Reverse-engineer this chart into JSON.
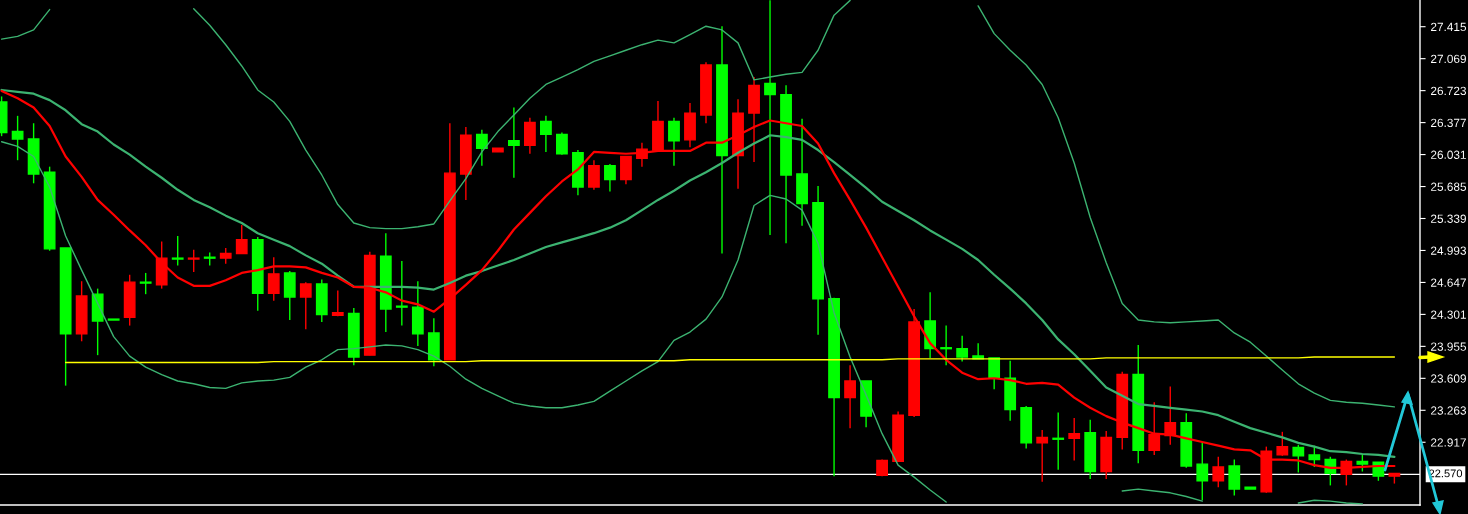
{
  "chart_data": {
    "type": "candlestick",
    "categories": [
      null,
      null,
      null,
      null,
      null,
      null,
      null,
      null,
      null,
      null,
      null,
      null,
      null,
      null,
      null,
      null,
      null,
      null,
      null,
      null,
      null,
      null,
      null,
      null,
      null,
      null,
      null,
      null,
      null,
      null,
      null,
      null,
      null,
      null,
      null,
      null,
      null,
      null,
      null,
      null,
      null,
      null,
      null,
      null,
      null,
      null,
      null,
      null,
      null,
      null,
      null,
      null,
      null,
      null,
      null,
      null,
      null,
      null,
      null,
      null,
      null,
      null,
      null,
      null,
      null,
      null,
      null,
      null,
      null,
      null,
      null,
      null,
      null,
      null,
      null,
      null,
      null,
      null,
      null,
      null,
      null,
      null,
      null,
      null,
      null,
      null,
      null,
      null
    ],
    "ohlc": [
      [
        26.6,
        26.66,
        26.23,
        26.27
      ],
      [
        26.28,
        26.45,
        25.97,
        26.2
      ],
      [
        26.2,
        26.37,
        25.72,
        25.82
      ],
      [
        25.84,
        25.9,
        24.99,
        25.01
      ],
      [
        25.02,
        25.02,
        23.53,
        24.09
      ],
      [
        24.09,
        24.66,
        24.01,
        24.5
      ],
      [
        24.52,
        24.58,
        23.86,
        24.23
      ],
      [
        24.25,
        24.25,
        24.24,
        24.24
      ],
      [
        24.27,
        24.73,
        24.18,
        24.65
      ],
      [
        24.65,
        24.75,
        24.52,
        24.64
      ],
      [
        24.62,
        25.09,
        24.58,
        24.91
      ],
      [
        24.91,
        25.15,
        24.83,
        24.9
      ],
      [
        24.9,
        25.0,
        24.76,
        24.91
      ],
      [
        24.92,
        24.97,
        24.83,
        24.91
      ],
      [
        24.91,
        25.02,
        24.85,
        24.96
      ],
      [
        24.96,
        25.27,
        24.96,
        25.11
      ],
      [
        25.11,
        25.14,
        24.34,
        24.53
      ],
      [
        24.53,
        24.92,
        24.45,
        24.74
      ],
      [
        24.75,
        24.77,
        24.24,
        24.49
      ],
      [
        24.49,
        24.65,
        24.14,
        24.63
      ],
      [
        24.63,
        24.68,
        24.22,
        24.3
      ],
      [
        24.29,
        24.56,
        24.28,
        24.32
      ],
      [
        24.31,
        24.37,
        23.75,
        23.84
      ],
      [
        23.86,
        24.98,
        23.86,
        24.94
      ],
      [
        24.93,
        25.18,
        24.11,
        24.36
      ],
      [
        24.39,
        24.88,
        24.18,
        24.38
      ],
      [
        24.38,
        24.66,
        23.96,
        24.09
      ],
      [
        24.1,
        24.26,
        23.74,
        23.81
      ],
      [
        23.81,
        26.37,
        23.81,
        25.83
      ],
      [
        25.82,
        26.33,
        25.54,
        26.24
      ],
      [
        26.25,
        26.3,
        25.91,
        26.1
      ],
      [
        26.06,
        26.1,
        26.06,
        26.1
      ],
      [
        26.18,
        26.54,
        25.78,
        26.13
      ],
      [
        26.13,
        26.43,
        26.04,
        26.38
      ],
      [
        26.39,
        26.45,
        26.06,
        26.25
      ],
      [
        26.25,
        26.27,
        26.03,
        26.04
      ],
      [
        26.05,
        26.08,
        25.59,
        25.68
      ],
      [
        25.68,
        25.97,
        25.65,
        25.91
      ],
      [
        25.91,
        25.93,
        25.63,
        25.76
      ],
      [
        25.76,
        26.01,
        25.71,
        26.01
      ],
      [
        25.99,
        26.16,
        25.9,
        26.09
      ],
      [
        26.08,
        26.61,
        26.08,
        26.39
      ],
      [
        26.39,
        26.43,
        25.91,
        26.18
      ],
      [
        26.19,
        26.59,
        26.11,
        26.48
      ],
      [
        26.46,
        27.03,
        26.37,
        27.0
      ],
      [
        27.0,
        27.42,
        24.96,
        26.02
      ],
      [
        26.02,
        26.63,
        25.66,
        26.48
      ],
      [
        26.48,
        26.87,
        25.95,
        26.78
      ],
      [
        26.8,
        27.7,
        25.16,
        26.68
      ],
      [
        26.68,
        26.78,
        25.07,
        25.81
      ],
      [
        25.82,
        26.42,
        25.26,
        25.5
      ],
      [
        25.51,
        25.69,
        24.08,
        24.47
      ],
      [
        24.47,
        24.48,
        22.55,
        23.4
      ],
      [
        23.4,
        23.75,
        23.07,
        23.58
      ],
      [
        23.58,
        23.58,
        23.08,
        23.2
      ],
      [
        22.56,
        22.73,
        22.55,
        22.72
      ],
      [
        22.71,
        23.25,
        22.71,
        23.21
      ],
      [
        23.21,
        24.36,
        23.19,
        24.22
      ],
      [
        24.23,
        24.54,
        23.83,
        23.93
      ],
      [
        23.94,
        24.18,
        23.75,
        23.93
      ],
      [
        23.93,
        24.07,
        23.79,
        23.84
      ],
      [
        23.85,
        23.99,
        23.82,
        23.82
      ],
      [
        23.83,
        23.83,
        23.49,
        23.62
      ],
      [
        23.61,
        23.8,
        23.15,
        23.27
      ],
      [
        23.29,
        23.31,
        22.85,
        22.91
      ],
      [
        22.91,
        23.05,
        22.49,
        22.97
      ],
      [
        22.96,
        23.24,
        22.62,
        22.95
      ],
      [
        22.96,
        23.18,
        22.72,
        23.01
      ],
      [
        23.02,
        23.16,
        22.52,
        22.6
      ],
      [
        22.6,
        23.04,
        22.52,
        22.97
      ],
      [
        22.97,
        23.68,
        22.84,
        23.65
      ],
      [
        23.65,
        23.97,
        22.69,
        22.83
      ],
      [
        22.83,
        23.35,
        22.78,
        23.0
      ],
      [
        22.99,
        23.52,
        22.89,
        23.13
      ],
      [
        23.13,
        23.23,
        22.64,
        22.66
      ],
      [
        22.68,
        22.92,
        22.29,
        22.5
      ],
      [
        22.5,
        22.76,
        22.43,
        22.65
      ],
      [
        22.66,
        22.73,
        22.34,
        22.41
      ],
      [
        22.43,
        22.43,
        22.41,
        22.41
      ],
      [
        22.38,
        22.87,
        22.37,
        22.82
      ],
      [
        22.78,
        23.03,
        22.77,
        22.87
      ],
      [
        22.86,
        22.89,
        22.59,
        22.77
      ],
      [
        22.78,
        22.88,
        22.65,
        22.73
      ],
      [
        22.73,
        22.76,
        22.45,
        22.58
      ],
      [
        22.57,
        22.73,
        22.45,
        22.71
      ],
      [
        22.71,
        22.78,
        22.6,
        22.68
      ],
      [
        22.7,
        22.7,
        22.5,
        22.55
      ],
      [
        22.55,
        22.58,
        22.47,
        22.58
      ]
    ],
    "colors": [
      "#00ff00",
      "#00ff00",
      "#00ff00",
      "#00ff00",
      "#00ff00",
      "#ff0000",
      "#00ff00",
      "#00ff00",
      "#ff0000",
      "#00ff00",
      "#ff0000",
      "#00ff00",
      "#ff0000",
      "#00ff00",
      "#ff0000",
      "#ff0000",
      "#00ff00",
      "#ff0000",
      "#00ff00",
      "#ff0000",
      "#00ff00",
      "#ff0000",
      "#00ff00",
      "#ff0000",
      "#00ff00",
      "#00ff00",
      "#00ff00",
      "#00ff00",
      "#ff0000",
      "#ff0000",
      "#00ff00",
      "#ff0000",
      "#00ff00",
      "#ff0000",
      "#00ff00",
      "#00ff00",
      "#00ff00",
      "#ff0000",
      "#00ff00",
      "#ff0000",
      "#ff0000",
      "#ff0000",
      "#00ff00",
      "#ff0000",
      "#ff0000",
      "#00ff00",
      "#ff0000",
      "#ff0000",
      "#00ff00",
      "#00ff00",
      "#00ff00",
      "#00ff00",
      "#00ff00",
      "#ff0000",
      "#00ff00",
      "#ff0000",
      "#ff0000",
      "#ff0000",
      "#00ff00",
      "#00ff00",
      "#00ff00",
      "#00ff00",
      "#00ff00",
      "#00ff00",
      "#00ff00",
      "#ff0000",
      "#00ff00",
      "#ff0000",
      "#00ff00",
      "#ff0000",
      "#ff0000",
      "#00ff00",
      "#ff0000",
      "#ff0000",
      "#00ff00",
      "#00ff00",
      "#ff0000",
      "#00ff00",
      "#00ff00",
      "#ff0000",
      "#ff0000",
      "#00ff00",
      "#00ff00",
      "#00ff00",
      "#ff0000",
      "#00ff00",
      "#00ff00",
      "#ff0000"
    ],
    "series": [
      {
        "type": "line",
        "color": "#3cb371",
        "values": [
          27.28,
          27.31,
          27.38,
          27.6,
          null,
          null,
          null,
          null,
          null,
          null,
          null,
          null,
          27.61,
          27.43,
          27.22,
          26.99,
          26.73,
          26.6,
          26.39,
          26.08,
          25.81,
          25.49,
          25.29,
          25.24,
          25.23,
          25.23,
          25.25,
          25.28,
          25.53,
          25.77,
          26.06,
          26.28,
          26.46,
          26.64,
          26.79,
          26.87,
          26.95,
          27.04,
          27.1,
          27.16,
          27.22,
          27.27,
          27.24,
          27.33,
          27.42,
          27.38,
          27.24,
          26.84,
          26.87,
          26.9,
          26.92,
          27.16,
          27.54,
          27.7,
          null,
          null,
          null,
          null,
          null,
          null,
          null,
          27.64,
          27.34,
          27.16,
          27.0,
          26.79,
          26.43,
          25.94,
          25.35,
          24.86,
          24.42,
          24.24,
          24.22,
          24.21,
          24.22,
          24.23,
          24.24,
          24.1,
          24.0,
          23.85,
          23.7,
          23.55,
          23.45,
          23.37,
          23.35,
          23.34,
          23.32,
          23.3
        ]
      },
      {
        "type": "line",
        "color": "#3cb371",
        "values": [
          26.73,
          26.71,
          26.69,
          26.62,
          26.51,
          26.36,
          26.28,
          26.14,
          26.03,
          25.9,
          25.78,
          25.65,
          25.54,
          25.46,
          25.37,
          25.29,
          25.18,
          25.11,
          25.04,
          24.94,
          24.85,
          24.72,
          24.6,
          24.6,
          24.6,
          24.6,
          24.59,
          24.57,
          24.64,
          24.72,
          24.77,
          24.83,
          24.89,
          24.96,
          25.03,
          25.08,
          25.13,
          25.18,
          25.24,
          25.32,
          25.43,
          25.54,
          25.64,
          25.75,
          25.84,
          25.94,
          26.05,
          26.15,
          26.24,
          26.22,
          26.19,
          26.08,
          25.95,
          25.81,
          25.67,
          25.52,
          25.42,
          25.32,
          25.21,
          25.11,
          25.01,
          24.89,
          24.73,
          24.58,
          24.42,
          24.24,
          24.03,
          23.87,
          23.69,
          23.51,
          23.42,
          23.33,
          23.31,
          23.29,
          23.27,
          23.25,
          23.21,
          23.14,
          23.07,
          23.02,
          22.97,
          22.91,
          22.87,
          22.82,
          22.81,
          22.79,
          22.78,
          22.76
        ]
      },
      {
        "type": "line",
        "color": "#3cb371",
        "values": [
          26.17,
          26.12,
          26.01,
          25.68,
          25.15,
          24.78,
          24.42,
          24.06,
          23.85,
          23.73,
          23.65,
          23.58,
          23.55,
          23.51,
          23.5,
          23.56,
          23.58,
          23.59,
          23.62,
          23.73,
          23.81,
          23.92,
          23.93,
          23.95,
          23.97,
          23.96,
          23.92,
          23.85,
          23.74,
          23.6,
          23.5,
          23.42,
          23.34,
          23.31,
          23.29,
          23.29,
          23.32,
          23.36,
          23.47,
          23.58,
          23.69,
          23.79,
          24.02,
          24.11,
          24.25,
          24.49,
          24.89,
          25.48,
          25.59,
          25.55,
          25.43,
          25.07,
          24.32,
          23.84,
          23.43,
          23.01,
          22.67,
          22.54,
          22.4,
          22.27,
          null,
          null,
          null,
          null,
          null,
          null,
          null,
          null,
          null,
          null,
          22.39,
          22.41,
          22.39,
          22.37,
          22.33,
          22.28,
          null,
          null,
          null,
          null,
          null,
          22.26,
          22.29,
          22.28,
          22.26,
          22.25,
          null,
          null
        ]
      },
      {
        "type": "line",
        "color": "#ff0000",
        "values": [
          26.72,
          26.64,
          26.54,
          26.34,
          26.01,
          25.79,
          25.54,
          25.38,
          25.21,
          25.05,
          24.86,
          24.7,
          24.61,
          24.61,
          24.67,
          24.75,
          24.78,
          24.82,
          24.82,
          24.81,
          24.75,
          24.7,
          24.6,
          24.59,
          24.54,
          24.45,
          24.41,
          24.33,
          24.47,
          24.62,
          24.78,
          24.99,
          25.22,
          25.4,
          25.58,
          25.74,
          25.87,
          26.06,
          26.05,
          26.04,
          26.05,
          26.07,
          26.07,
          26.07,
          26.16,
          26.16,
          26.24,
          26.33,
          26.4,
          26.37,
          26.34,
          26.15,
          25.83,
          25.54,
          25.24,
          24.92,
          24.6,
          24.28,
          23.99,
          23.81,
          23.67,
          23.6,
          23.61,
          23.59,
          23.55,
          23.56,
          23.54,
          23.4,
          23.29,
          23.2,
          23.13,
          23.07,
          23.01,
          23.0,
          22.96,
          22.92,
          22.88,
          22.84,
          22.83,
          22.73,
          22.73,
          22.72,
          22.67,
          22.64,
          22.64,
          22.65,
          22.66,
          22.66
        ]
      },
      {
        "type": "line",
        "color": "#ffff00",
        "values": [
          null,
          null,
          null,
          null,
          23.78,
          23.78,
          23.78,
          23.78,
          23.78,
          23.78,
          23.78,
          23.78,
          23.78,
          23.78,
          23.78,
          23.78,
          23.78,
          23.79,
          23.79,
          23.79,
          23.79,
          23.79,
          23.79,
          23.79,
          23.79,
          23.79,
          23.79,
          23.79,
          23.79,
          23.79,
          23.8,
          23.8,
          23.8,
          23.8,
          23.8,
          23.8,
          23.8,
          23.8,
          23.8,
          23.8,
          23.8,
          23.8,
          23.8,
          23.81,
          23.81,
          23.81,
          23.81,
          23.81,
          23.81,
          23.81,
          23.81,
          23.81,
          23.81,
          23.81,
          23.81,
          23.81,
          23.82,
          23.82,
          23.82,
          23.82,
          23.82,
          23.82,
          23.82,
          23.82,
          23.82,
          23.82,
          23.82,
          23.82,
          23.82,
          23.83,
          23.83,
          23.83,
          23.83,
          23.83,
          23.83,
          23.83,
          23.83,
          23.83,
          23.83,
          23.83,
          23.83,
          23.83,
          23.84,
          23.84,
          23.84,
          23.84,
          23.84,
          23.84
        ]
      }
    ],
    "ylim": [
      22.238,
      27.704
    ],
    "yticks": [
      27.415,
      27.069,
      26.723,
      26.377,
      26.031,
      25.685,
      25.339,
      24.993,
      24.647,
      24.301,
      23.955,
      23.609,
      23.263,
      22.917
    ],
    "ref_lines": [
      {
        "axis": "y",
        "value": 22.57,
        "label": "22.570",
        "color": "#ffffff"
      }
    ],
    "grid": false
  }
}
